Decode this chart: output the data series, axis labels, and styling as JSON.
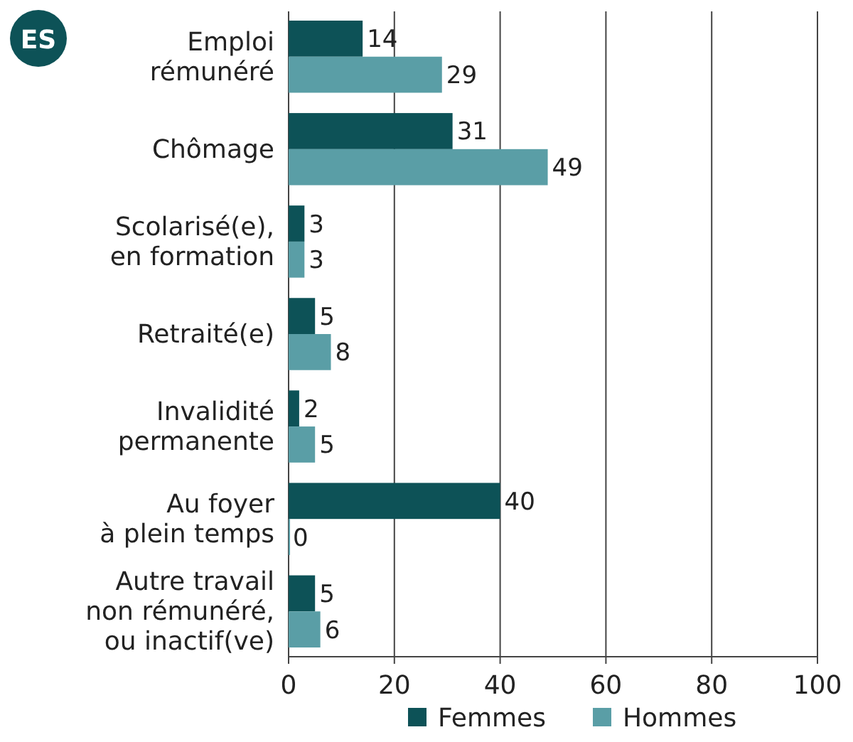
{
  "chart_data": {
    "type": "bar",
    "orientation": "horizontal",
    "categories": [
      "Emploi\nrémunéré",
      "Chômage",
      "Scolarisé(e),\nen formation",
      "Retraité(e)",
      "Invalidité\npermanente",
      "Au foyer\nà plein temps",
      "Autre travail\nnon rémunéré,\nou inactif(ve)"
    ],
    "series": [
      {
        "name": "Femmes",
        "color": "#0d5257",
        "values": [
          14,
          31,
          3,
          5,
          2,
          40,
          5
        ]
      },
      {
        "name": "Hommes",
        "color": "#5a9ea6",
        "values": [
          29,
          49,
          3,
          8,
          5,
          0,
          6
        ]
      }
    ],
    "xlim": [
      0,
      100
    ],
    "xticks": [
      0,
      20,
      40,
      60,
      80,
      100
    ],
    "grid": "x",
    "legend": "bottom",
    "data_labels": true,
    "annotations": [
      "ES"
    ]
  }
}
